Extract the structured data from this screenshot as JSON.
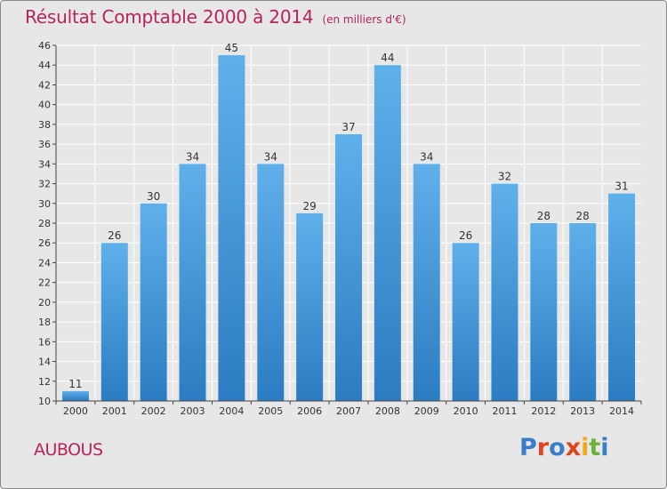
{
  "header": {
    "title": "Résultat Comptable 2000 à 2014",
    "subtitle": "(en milliers d'€)"
  },
  "footer": {
    "commune": "AUBOUS",
    "brand": "Proxiti",
    "brand_colors": [
      "#3a7ec8",
      "#e0451f",
      "#3a7ec8",
      "#e0451f",
      "#f2a71b",
      "#6bb23a",
      "#3a7ec8"
    ]
  },
  "colors": {
    "accent": "#b5245a",
    "bar_top": "#5fb0ea",
    "bar_bottom": "#2b7cc2",
    "grid": "#ffffff",
    "background": "#e7e7e7"
  },
  "chart_data": {
    "type": "bar",
    "title": "Résultat Comptable 2000 à 2014",
    "subtitle": "(en milliers d'€)",
    "xlabel": "",
    "ylabel": "",
    "categories": [
      "2000",
      "2001",
      "2002",
      "2003",
      "2004",
      "2005",
      "2006",
      "2007",
      "2008",
      "2009",
      "2010",
      "2011",
      "2012",
      "2013",
      "2014"
    ],
    "values": [
      11,
      26,
      30,
      34,
      45,
      34,
      29,
      37,
      44,
      34,
      26,
      32,
      28,
      28,
      31
    ],
    "ylim": [
      10,
      46
    ],
    "yticks": [
      10,
      12,
      14,
      16,
      18,
      20,
      22,
      24,
      26,
      28,
      30,
      32,
      34,
      36,
      38,
      40,
      42,
      44,
      46
    ],
    "grid": true,
    "legend": "none"
  }
}
